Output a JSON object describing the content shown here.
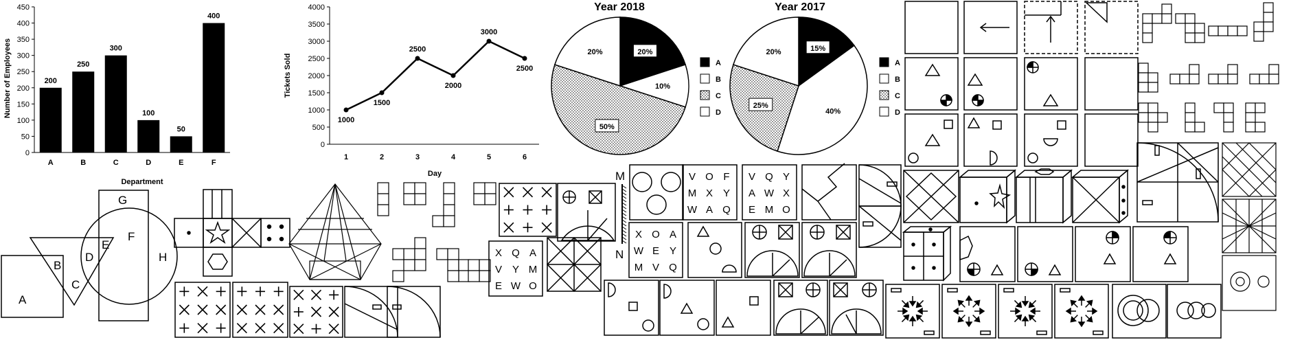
{
  "chart_data": [
    {
      "type": "bar",
      "categories": [
        "A",
        "B",
        "C",
        "D",
        "E",
        "F"
      ],
      "values": [
        200,
        250,
        300,
        100,
        50,
        400
      ],
      "data_labels": [
        "200",
        "250",
        "300",
        "100",
        "50",
        "400"
      ],
      "xlabel": "Department",
      "ylabel": "Number of Employees",
      "ylim": [
        0,
        450
      ],
      "yticks": [
        "0",
        "50",
        "100",
        "150",
        "200",
        "250",
        "300",
        "350",
        "400",
        "450"
      ],
      "color": "#000000"
    },
    {
      "type": "line",
      "x": [
        "1",
        "2",
        "3",
        "4",
        "5",
        "6"
      ],
      "values": [
        1000,
        1500,
        2500,
        2000,
        3000,
        2500
      ],
      "data_labels": [
        "1000",
        "1500",
        "2500",
        "2000",
        "3000",
        "2500"
      ],
      "xlabel": "Day",
      "ylabel": "Tickets Sold",
      "ylim": [
        0,
        4000
      ],
      "yticks": [
        "0",
        "500",
        "1000",
        "1500",
        "2000",
        "2500",
        "3000",
        "3500",
        "4000"
      ]
    },
    {
      "type": "pie",
      "title": "Year 2018",
      "labels": [
        "A",
        "B",
        "C",
        "D"
      ],
      "values": [
        20,
        10,
        50,
        20
      ],
      "value_labels": [
        "20%",
        "10%",
        "50%",
        "20%"
      ],
      "fills": [
        "black",
        "white",
        "dots",
        "white"
      ]
    },
    {
      "type": "pie",
      "title": "Year 2017",
      "labels": [
        "A",
        "B",
        "C",
        "D"
      ],
      "values": [
        15,
        40,
        25,
        20
      ],
      "value_labels": [
        "15%",
        "40%",
        "25%",
        "20%"
      ],
      "fills": [
        "black",
        "white",
        "dots",
        "white"
      ]
    }
  ],
  "venn": {
    "labels": [
      "A",
      "B",
      "C",
      "D",
      "E",
      "F",
      "G",
      "H"
    ]
  },
  "letter_grids": [
    [
      "V",
      "O",
      "F",
      "M",
      "X",
      "Y",
      "W",
      "A",
      "Q"
    ],
    [
      "V",
      "Q",
      "Y",
      "A",
      "W",
      "X",
      "E",
      "M",
      "O"
    ],
    [
      "X",
      "O",
      "A",
      "W",
      "E",
      "Y",
      "M",
      "V",
      "Q"
    ],
    [
      "X",
      "Q",
      "A",
      "V",
      "Y",
      "M",
      "E",
      "W",
      "O"
    ]
  ],
  "mirror_labels": {
    "top": "M",
    "bottom": "N"
  },
  "colors": {
    "ink": "#000000",
    "paper": "#ffffff"
  }
}
